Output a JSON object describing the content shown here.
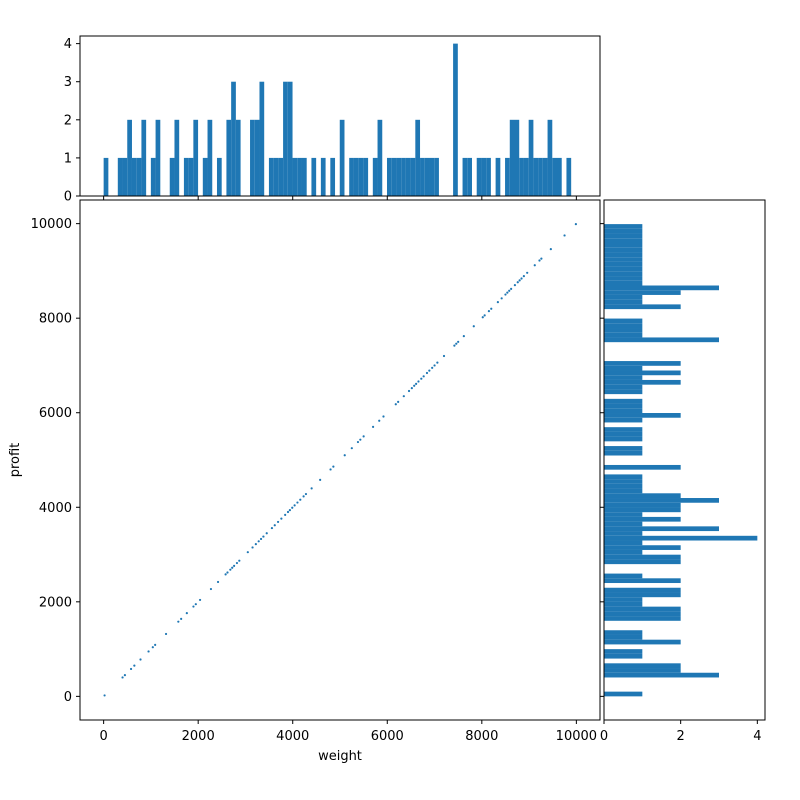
{
  "chart_data": [
    {
      "type": "scatter",
      "xlabel": "weight",
      "ylabel": "profit",
      "xlim": [
        -500,
        10500
      ],
      "ylim": [
        -500,
        10500
      ],
      "xticks": [
        "0",
        "2000",
        "4000",
        "6000",
        "8000",
        "10000"
      ],
      "yticks": [
        "0",
        "2000",
        "4000",
        "6000",
        "8000",
        "10000"
      ],
      "x": [
        20,
        400,
        450,
        580,
        650,
        780,
        950,
        1040,
        1090,
        1320,
        1580,
        1640,
        1760,
        1900,
        1950,
        2040,
        2270,
        2420,
        2580,
        2620,
        2680,
        2720,
        2760,
        2820,
        2870,
        3050,
        3150,
        3220,
        3280,
        3330,
        3380,
        3450,
        3560,
        3620,
        3690,
        3760,
        3840,
        3900,
        3940,
        3990,
        4040,
        4100,
        4160,
        4230,
        4280,
        4400,
        4580,
        4800,
        4860,
        5100,
        5250,
        5380,
        5430,
        5500,
        5700,
        5830,
        5920,
        6180,
        6230,
        6350,
        6460,
        6520,
        6570,
        6610,
        6660,
        6720,
        6770,
        6840,
        6890,
        6950,
        7000,
        7060,
        7200,
        7420,
        7460,
        7500,
        7620,
        7830,
        8020,
        8060,
        8150,
        8200,
        8340,
        8420,
        8500,
        8540,
        8580,
        8620,
        8700,
        8760,
        8800,
        8840,
        8890,
        8960,
        9120,
        9220,
        9260,
        9460,
        9750,
        9990
      ],
      "y": [
        20,
        400,
        450,
        580,
        650,
        780,
        950,
        1040,
        1090,
        1320,
        1580,
        1640,
        1760,
        1900,
        1950,
        2040,
        2270,
        2420,
        2580,
        2620,
        2680,
        2720,
        2760,
        2820,
        2870,
        3050,
        3150,
        3220,
        3280,
        3330,
        3380,
        3450,
        3560,
        3620,
        3690,
        3760,
        3840,
        3900,
        3940,
        3990,
        4040,
        4100,
        4160,
        4230,
        4280,
        4400,
        4580,
        4800,
        4860,
        5100,
        5250,
        5380,
        5430,
        5500,
        5700,
        5830,
        5920,
        6180,
        6230,
        6350,
        6460,
        6520,
        6570,
        6610,
        6660,
        6720,
        6770,
        6840,
        6890,
        6950,
        7000,
        7060,
        7200,
        7420,
        7460,
        7500,
        7620,
        7830,
        8020,
        8060,
        8150,
        8200,
        8340,
        8420,
        8500,
        8540,
        8580,
        8620,
        8700,
        8760,
        8800,
        8840,
        8890,
        8960,
        9120,
        9220,
        9260,
        9460,
        9750,
        9990
      ],
      "color": "#1f77b4"
    },
    {
      "type": "bar",
      "orientation": "vertical",
      "bin_start": 0,
      "bin_width": 99.9,
      "counts": [
        1,
        0,
        0,
        1,
        1,
        2,
        1,
        1,
        2,
        0,
        1,
        2,
        0,
        0,
        1,
        2,
        0,
        1,
        1,
        2,
        0,
        1,
        2,
        0,
        1,
        0,
        2,
        3,
        2,
        0,
        0,
        2,
        2,
        3,
        0,
        1,
        1,
        1,
        3,
        3,
        1,
        1,
        1,
        0,
        1,
        0,
        1,
        0,
        1,
        0,
        2,
        0,
        1,
        1,
        1,
        1,
        0,
        1,
        2,
        0,
        1,
        1,
        1,
        1,
        1,
        1,
        2,
        1,
        1,
        1,
        1,
        0,
        0,
        0,
        4,
        0,
        1,
        1,
        0,
        1,
        1,
        1,
        0,
        1,
        0,
        1,
        2,
        2,
        1,
        1,
        2,
        1,
        1,
        1,
        2,
        1,
        1,
        0,
        1,
        0
      ],
      "yticks": [
        "0",
        "1",
        "2",
        "3",
        "4"
      ],
      "ylim": [
        0,
        4.2
      ],
      "color": "#1f77b4"
    },
    {
      "type": "bar",
      "orientation": "horizontal",
      "bin_start": 0,
      "bin_width": 99.9,
      "counts": [
        1,
        0,
        0,
        0,
        3,
        2,
        2,
        0,
        1,
        1,
        0,
        2,
        1,
        1,
        0,
        0,
        2,
        2,
        2,
        1,
        1,
        2,
        2,
        0,
        2,
        1,
        0,
        0,
        2,
        2,
        1,
        2,
        1,
        4,
        1,
        3,
        1,
        2,
        1,
        2,
        2,
        3,
        2,
        1,
        1,
        1,
        1,
        0,
        2,
        0,
        0,
        1,
        1,
        0,
        1,
        1,
        1,
        0,
        1,
        2,
        1,
        1,
        1,
        0,
        1,
        1,
        2,
        1,
        2,
        1,
        2,
        0,
        0,
        0,
        0,
        3,
        1,
        1,
        1,
        1,
        0,
        0,
        2,
        1,
        1,
        2,
        3,
        1,
        1,
        1,
        1,
        1,
        1,
        1,
        1,
        1,
        1,
        1,
        1,
        1
      ],
      "xticks": [
        "0",
        "2",
        "4"
      ],
      "xlim": [
        0,
        4.2
      ],
      "color": "#1f77b4"
    }
  ]
}
